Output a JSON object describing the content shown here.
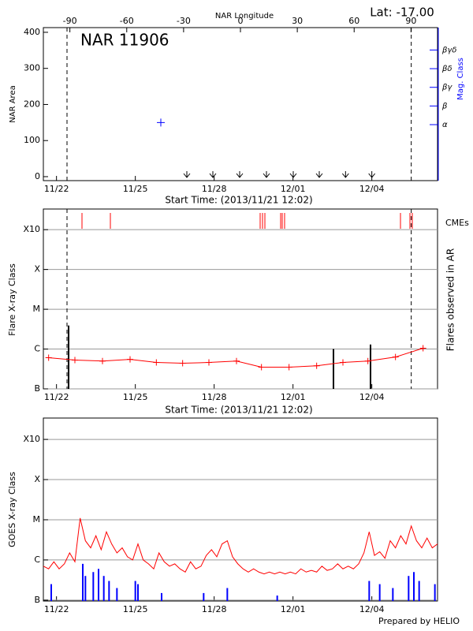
{
  "chart_data": [
    {
      "type": "scatter",
      "title": "NAR 11906",
      "annotation": "Lat: -17.00",
      "x2label": "NAR Longitude",
      "ylabel": "NAR Area",
      "y2label": "Mag. Class",
      "xlabel": "Start Time: (2013/11/21 12:02)",
      "xlim": [
        0,
        15
      ],
      "xticks": [
        {
          "value": 0.5,
          "label": "11/22"
        },
        {
          "value": 3.5,
          "label": "11/25"
        },
        {
          "value": 6.5,
          "label": "11/28"
        },
        {
          "value": 9.5,
          "label": "12/01"
        },
        {
          "value": 12.5,
          "label": "12/04"
        }
      ],
      "x2lim": [
        -104,
        104
      ],
      "x2ticks": [
        -90,
        -60,
        -30,
        0,
        30,
        60,
        90
      ],
      "ylim": [
        -11,
        413
      ],
      "yticks": [
        0,
        100,
        200,
        300,
        400
      ],
      "y2lim": [
        -2,
        6.2
      ],
      "y2ticks": [
        {
          "value": 1,
          "label": "α"
        },
        {
          "value": 2,
          "label": "β"
        },
        {
          "value": 3,
          "label": "βγ"
        },
        {
          "value": 4,
          "label": "βδ"
        },
        {
          "value": 5,
          "label": "βγδ"
        }
      ],
      "y2color": "#0000ff",
      "series": [
        {
          "color": "#0000ff",
          "x": [
            4.47
          ],
          "values": [
            150
          ]
        }
      ],
      "arrows_x": [
        5.46,
        6.45,
        7.47,
        8.49,
        9.51,
        10.5,
        11.5,
        12.5
      ],
      "vlines": [
        0.9,
        14.0
      ]
    },
    {
      "type": "line",
      "ylabel": "Flare X-ray Class",
      "y2label": "Flares observed in AR",
      "xlabel": "Start Time: (2013/11/21 12:02)",
      "log": true,
      "grid": true,
      "xlim": [
        0,
        15
      ],
      "xticks": [
        {
          "value": 0.5,
          "label": "11/22"
        },
        {
          "value": 3.5,
          "label": "11/25"
        },
        {
          "value": 6.5,
          "label": "11/28"
        },
        {
          "value": 9.5,
          "label": "12/01"
        },
        {
          "value": 12.5,
          "label": "12/04"
        }
      ],
      "ylim": [
        1e-07,
        0.0033
      ],
      "yticks": [
        {
          "value": 1e-07,
          "label": "B"
        },
        {
          "value": 1e-06,
          "label": "C"
        },
        {
          "value": 1e-05,
          "label": "M"
        },
        {
          "value": 0.0001,
          "label": "X"
        },
        {
          "value": 0.001,
          "label": "X10"
        }
      ],
      "series": [
        {
          "color": "#ff0000",
          "x": [
            0.2,
            1.2,
            2.25,
            3.3,
            4.3,
            5.3,
            6.3,
            7.35,
            8.3,
            9.35,
            10.4,
            11.4,
            12.35,
            13.4,
            14.45
          ],
          "values": [
            6.05e-07,
            5.3e-07,
            5e-07,
            5.5e-07,
            4.6e-07,
            4.4e-07,
            4.6e-07,
            5e-07,
            3.5e-07,
            3.5e-07,
            3.8e-07,
            4.6e-07,
            5e-07,
            6.3e-07,
            1.05e-06
          ]
        }
      ],
      "flares": {
        "color": "#000000",
        "x": [
          0.96,
          11.04,
          12.45
        ],
        "values": [
          3.9e-06,
          1e-06,
          1.3e-06
        ]
      },
      "cmes": {
        "label": "CMEs",
        "color": "#ff0000",
        "x": [
          1.47,
          2.55,
          8.25,
          8.34,
          8.43,
          9.03,
          9.09,
          9.18,
          13.59,
          13.95,
          14.04
        ]
      },
      "vlines": [
        0.9,
        14.0
      ]
    },
    {
      "type": "line",
      "ylabel": "GOES X-ray Class",
      "log": true,
      "grid": true,
      "xlim": [
        0,
        15
      ],
      "xticks": [
        {
          "value": 0.5,
          "label": "11/22"
        },
        {
          "value": 3.5,
          "label": "11/25"
        },
        {
          "value": 6.5,
          "label": "11/28"
        },
        {
          "value": 9.5,
          "label": "12/01"
        },
        {
          "value": 12.5,
          "label": "12/04"
        }
      ],
      "ylim": [
        9.5e-08,
        0.0034
      ],
      "yticks": [
        {
          "value": 1e-07,
          "label": "B"
        },
        {
          "value": 1e-06,
          "label": "C"
        },
        {
          "value": 1e-05,
          "label": "M"
        },
        {
          "value": 0.0001,
          "label": "X"
        },
        {
          "value": 0.001,
          "label": "X10"
        }
      ],
      "series": [
        {
          "color": "#ff0000",
          "x": [
            0,
            0.2,
            0.4,
            0.6,
            0.8,
            1,
            1.2,
            1.4,
            1.6,
            1.8,
            2,
            2.2,
            2.4,
            2.6,
            2.8,
            3,
            3.2,
            3.4,
            3.6,
            3.8,
            4,
            4.2,
            4.4,
            4.6,
            4.8,
            5,
            5.2,
            5.4,
            5.6,
            5.8,
            6,
            6.2,
            6.4,
            6.6,
            6.8,
            7,
            7.2,
            7.4,
            7.6,
            7.8,
            8,
            8.2,
            8.4,
            8.6,
            8.8,
            9,
            9.2,
            9.4,
            9.6,
            9.8,
            10,
            10.2,
            10.4,
            10.6,
            10.8,
            11,
            11.2,
            11.4,
            11.6,
            11.8,
            12,
            12.2,
            12.4,
            12.6,
            12.8,
            13,
            13.2,
            13.4,
            13.6,
            13.8,
            14,
            14.2,
            14.4,
            14.6,
            14.8,
            15
          ],
          "values": [
            7e-07,
            6e-07,
            9e-07,
            6e-07,
            8e-07,
            1.5e-06,
            9e-07,
            1.1e-05,
            3e-06,
            2e-06,
            4e-06,
            1.8e-06,
            5e-06,
            2.5e-06,
            1.5e-06,
            2e-06,
            1.2e-06,
            1e-06,
            2.5e-06,
            1e-06,
            8e-07,
            6e-07,
            1.5e-06,
            9e-07,
            7e-07,
            8e-07,
            6e-07,
            5e-07,
            9e-07,
            6e-07,
            7e-07,
            1.3e-06,
            1.8e-06,
            1.2e-06,
            2.5e-06,
            3e-06,
            1.2e-06,
            8e-07,
            6e-07,
            5e-07,
            6e-07,
            5e-07,
            4.5e-07,
            5e-07,
            4.5e-07,
            5e-07,
            4.5e-07,
            5e-07,
            4.5e-07,
            6e-07,
            5e-07,
            5.5e-07,
            5e-07,
            7e-07,
            5.5e-07,
            6e-07,
            8e-07,
            6e-07,
            7e-07,
            6e-07,
            8e-07,
            1.5e-06,
            5e-06,
            1.3e-06,
            1.6e-06,
            1.1e-06,
            3e-06,
            2e-06,
            4e-06,
            2.5e-06,
            7e-06,
            3e-06,
            2e-06,
            3.5e-06,
            2e-06,
            2.5e-06
          ]
        },
        {
          "color": "#0000ff",
          "style": "spikes",
          "x": [
            0.3,
            1.5,
            1.6,
            1.9,
            2.1,
            2.3,
            2.5,
            2.8,
            3.5,
            3.6,
            4.5,
            6.1,
            7.0,
            8.9,
            12.4,
            12.8,
            13.3,
            13.9,
            14.1,
            14.3,
            14.9
          ],
          "values": [
            2.5e-07,
            8e-07,
            4e-07,
            5e-07,
            6e-07,
            4e-07,
            3e-07,
            2e-07,
            3e-07,
            2.5e-07,
            1.5e-07,
            1.5e-07,
            2e-07,
            1.3e-07,
            3e-07,
            2.5e-07,
            2e-07,
            4e-07,
            5e-07,
            3e-07,
            2.5e-07
          ]
        }
      ]
    }
  ],
  "footer": "Prepared by HELIO"
}
